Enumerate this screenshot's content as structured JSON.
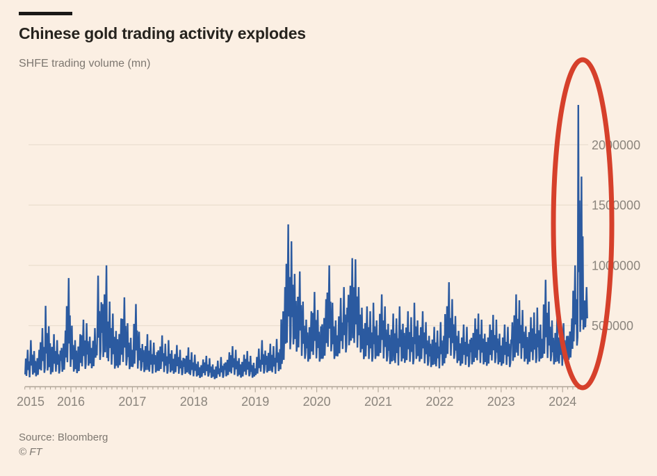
{
  "header": {
    "title": "Chinese gold trading activity explodes",
    "subtitle": "SHFE trading volume (mn)"
  },
  "footer": {
    "source": "Source: Bloomberg",
    "copyright": "© FT"
  },
  "colors": {
    "background": "#FBEFE3",
    "line": "#2B5AA0",
    "annotation_red": "#D6402B",
    "grid": "#E9DDCE",
    "axis": "#AFA496",
    "title_text": "#26231E",
    "muted_text": "#7D7770",
    "axis_label_text": "#8B857D",
    "accent_bar": "#1A1817"
  },
  "chart_data": {
    "type": "line",
    "title": "Chinese gold trading activity explodes",
    "subtitle": "SHFE trading volume (mn)",
    "source": "Bloomberg",
    "grid": true,
    "legend": "none",
    "x_axis": {
      "range_decimal_years": [
        2015.25,
        2024.42
      ],
      "tick_labels": [
        "2015",
        "2016",
        "2017",
        "2018",
        "2019",
        "2020",
        "2021",
        "2022",
        "2023",
        "2024"
      ],
      "minor_ticks": "monthly"
    },
    "y_axis": {
      "side": "right",
      "range": [
        0,
        2400000
      ],
      "tick_values": [
        500000,
        1000000,
        1500000,
        2000000
      ],
      "tick_labels": [
        "500000",
        "1000000",
        "1500000",
        "2000000"
      ]
    },
    "annotation": {
      "type": "ellipse",
      "meaning": "highlights 2024 trading-volume spike",
      "color": "#D6402B"
    },
    "series": [
      {
        "name": "SHFE gold trading volume",
        "start_month": "2015-04",
        "interval": "monthly",
        "value_scale": 1000,
        "note": "monthly low/high envelope of daily volume, values in contracts",
        "peak": {
          "month": "2024-04",
          "value": 2330000
        },
        "points_low_high": [
          [
            60,
            300
          ],
          [
            80,
            380
          ],
          [
            70,
            300
          ],
          [
            90,
            480
          ],
          [
            100,
            665
          ],
          [
            80,
            430
          ],
          [
            90,
            380
          ],
          [
            100,
            460
          ],
          [
            120,
            895
          ],
          [
            100,
            500
          ],
          [
            90,
            430
          ],
          [
            120,
            550
          ],
          [
            150,
            520
          ],
          [
            130,
            480
          ],
          [
            180,
            915
          ],
          [
            200,
            1000
          ],
          [
            150,
            700
          ],
          [
            120,
            600
          ],
          [
            130,
            560
          ],
          [
            140,
            735
          ],
          [
            120,
            520
          ],
          [
            130,
            680
          ],
          [
            110,
            450
          ],
          [
            100,
            430
          ],
          [
            90,
            380
          ],
          [
            100,
            360
          ],
          [
            110,
            420
          ],
          [
            90,
            350
          ],
          [
            100,
            380
          ],
          [
            90,
            340
          ],
          [
            80,
            300
          ],
          [
            90,
            320
          ],
          [
            70,
            280
          ],
          [
            70,
            260
          ],
          [
            60,
            220
          ],
          [
            70,
            250
          ],
          [
            60,
            230
          ],
          [
            50,
            210
          ],
          [
            60,
            240
          ],
          [
            70,
            280
          ],
          [
            80,
            330
          ],
          [
            70,
            300
          ],
          [
            60,
            260
          ],
          [
            70,
            290
          ],
          [
            60,
            250
          ],
          [
            80,
            310
          ],
          [
            90,
            380
          ],
          [
            100,
            350
          ],
          [
            90,
            330
          ],
          [
            110,
            390
          ],
          [
            150,
            820
          ],
          [
            250,
            1340
          ],
          [
            300,
            1200
          ],
          [
            250,
            950
          ],
          [
            200,
            700
          ],
          [
            180,
            620
          ],
          [
            200,
            780
          ],
          [
            180,
            630
          ],
          [
            200,
            720
          ],
          [
            250,
            1000
          ],
          [
            200,
            690
          ],
          [
            220,
            730
          ],
          [
            250,
            820
          ],
          [
            300,
            1060
          ],
          [
            280,
            1050
          ],
          [
            250,
            820
          ],
          [
            200,
            660
          ],
          [
            180,
            620
          ],
          [
            200,
            690
          ],
          [
            220,
            760
          ],
          [
            180,
            660
          ],
          [
            160,
            600
          ],
          [
            150,
            560
          ],
          [
            180,
            660
          ],
          [
            170,
            620
          ],
          [
            160,
            570
          ],
          [
            200,
            690
          ],
          [
            180,
            620
          ],
          [
            150,
            530
          ],
          [
            140,
            490
          ],
          [
            130,
            460
          ],
          [
            150,
            530
          ],
          [
            200,
            860
          ],
          [
            200,
            720
          ],
          [
            170,
            580
          ],
          [
            150,
            510
          ],
          [
            140,
            490
          ],
          [
            160,
            560
          ],
          [
            170,
            600
          ],
          [
            160,
            550
          ],
          [
            150,
            510
          ],
          [
            170,
            590
          ],
          [
            160,
            550
          ],
          [
            150,
            510
          ],
          [
            140,
            490
          ],
          [
            180,
            760
          ],
          [
            200,
            710
          ],
          [
            180,
            630
          ],
          [
            160,
            570
          ],
          [
            170,
            610
          ],
          [
            180,
            650
          ],
          [
            200,
            880
          ],
          [
            180,
            700
          ],
          [
            160,
            560
          ],
          [
            150,
            510
          ],
          [
            170,
            520
          ],
          [
            200,
            560
          ],
          [
            300,
            1000
          ],
          [
            350,
            2330
          ],
          [
            450,
            820
          ]
        ]
      }
    ]
  }
}
